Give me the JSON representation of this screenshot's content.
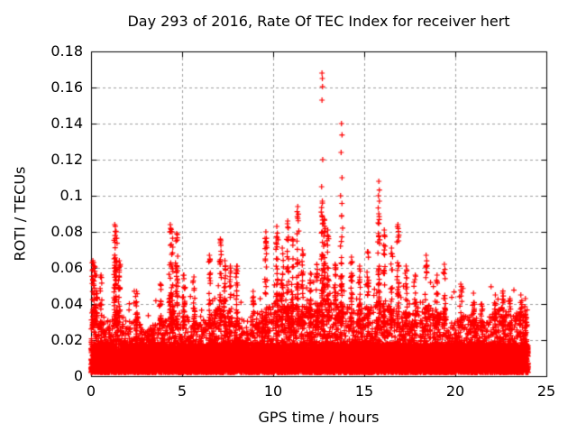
{
  "figure": {
    "background": "#ffffff",
    "text_color": "#000000",
    "border_color": "#000000"
  },
  "chart_data": {
    "type": "scatter",
    "title": "Day 293 of 2016, Rate Of TEC Index for receiver hert",
    "xlabel": "GPS time / hours",
    "ylabel": "ROTI / TECUs",
    "xlim": [
      0,
      25
    ],
    "ylim": [
      0,
      0.18
    ],
    "xticks": {
      "values": [
        0,
        5,
        10,
        15,
        20,
        25
      ],
      "labels": [
        "0",
        "5",
        "10",
        "15",
        "20",
        "25"
      ]
    },
    "yticks": {
      "values": [
        0,
        0.02,
        0.04,
        0.06,
        0.08,
        0.1,
        0.12,
        0.14,
        0.16,
        0.18
      ],
      "labels": [
        "0",
        "0.02",
        "0.04",
        "0.06",
        "0.08",
        "0.1",
        "0.12",
        "0.14",
        "0.16",
        "0.18"
      ]
    },
    "grid": {
      "visible": true,
      "line_style": "dashed",
      "color": "#a0a0a0"
    },
    "legend": null,
    "series": [
      {
        "name": "ROTI",
        "marker": "plus",
        "color": "#ff0000",
        "marker_size_px": 7,
        "time_range_hours": [
          0,
          24
        ],
        "dense_band": {
          "solid_top_typical_tecu": 0.02,
          "profile_t_hours": [
            0,
            0.5,
            1,
            1.5,
            2,
            2.5,
            3,
            3.5,
            4,
            4.5,
            5,
            5.5,
            6,
            6.5,
            7,
            7.5,
            8,
            8.5,
            9,
            9.5,
            10,
            10.5,
            11,
            11.5,
            12,
            12.5,
            13,
            13.5,
            14,
            14.5,
            15,
            15.5,
            16,
            16.5,
            17,
            17.5,
            18,
            18.5,
            19,
            19.5,
            20,
            20.5,
            21,
            21.5,
            22,
            22.5,
            23,
            23.5,
            24
          ],
          "profile_top_tecu": [
            0.034,
            0.03,
            0.032,
            0.038,
            0.03,
            0.034,
            0.026,
            0.03,
            0.032,
            0.038,
            0.034,
            0.032,
            0.03,
            0.034,
            0.038,
            0.034,
            0.032,
            0.033,
            0.034,
            0.038,
            0.04,
            0.046,
            0.042,
            0.04,
            0.038,
            0.042,
            0.043,
            0.042,
            0.04,
            0.036,
            0.038,
            0.04,
            0.043,
            0.04,
            0.036,
            0.035,
            0.036,
            0.04,
            0.035,
            0.035,
            0.031,
            0.034,
            0.035,
            0.03,
            0.034,
            0.038,
            0.034,
            0.034,
            0.038
          ]
        },
        "spike_clusters": [
          [
            0.1,
            0.064
          ],
          [
            0.18,
            0.061
          ],
          [
            0.3,
            0.056
          ],
          [
            0.55,
            0.056
          ],
          [
            1.3,
            0.084
          ],
          [
            1.38,
            0.08
          ],
          [
            1.55,
            0.064
          ],
          [
            2.5,
            0.047
          ],
          [
            3.8,
            0.051
          ],
          [
            4.35,
            0.084
          ],
          [
            4.45,
            0.08
          ],
          [
            4.7,
            0.079
          ],
          [
            5.1,
            0.056
          ],
          [
            5.65,
            0.055
          ],
          [
            6.5,
            0.067
          ],
          [
            7.1,
            0.076
          ],
          [
            7.35,
            0.064
          ],
          [
            7.65,
            0.061
          ],
          [
            8.0,
            0.061
          ],
          [
            8.9,
            0.047
          ],
          [
            9.6,
            0.08
          ],
          [
            10.2,
            0.083
          ],
          [
            10.5,
            0.071
          ],
          [
            10.8,
            0.086
          ],
          [
            11.05,
            0.076
          ],
          [
            11.35,
            0.094
          ],
          [
            11.6,
            0.07
          ],
          [
            12.05,
            0.057
          ],
          [
            12.4,
            0.062
          ],
          [
            12.68,
            0.168
          ],
          [
            12.8,
            0.087
          ],
          [
            13.0,
            0.081
          ],
          [
            13.4,
            0.062
          ],
          [
            13.75,
            0.14
          ],
          [
            14.3,
            0.066
          ],
          [
            14.75,
            0.061
          ],
          [
            15.2,
            0.069
          ],
          [
            15.8,
            0.108
          ],
          [
            16.1,
            0.081
          ],
          [
            16.5,
            0.071
          ],
          [
            16.85,
            0.084
          ],
          [
            17.3,
            0.061
          ],
          [
            17.8,
            0.056
          ],
          [
            18.4,
            0.067
          ],
          [
            19.0,
            0.056
          ],
          [
            19.4,
            0.062
          ],
          [
            20.3,
            0.051
          ],
          [
            21.0,
            0.046
          ],
          [
            21.45,
            0.04
          ],
          [
            22.2,
            0.045
          ],
          [
            22.6,
            0.046
          ],
          [
            23.0,
            0.043
          ],
          [
            23.6,
            0.045
          ],
          [
            23.85,
            0.043
          ]
        ],
        "explicit_points": [
          [
            12.68,
            0.168
          ],
          [
            12.7,
            0.165
          ],
          [
            12.68,
            0.153
          ],
          [
            12.72,
            0.12
          ],
          [
            12.66,
            0.105
          ],
          [
            12.7,
            0.097
          ],
          [
            13.75,
            0.14
          ],
          [
            13.73,
            0.124
          ],
          [
            13.78,
            0.11
          ],
          [
            13.7,
            0.1
          ],
          [
            13.76,
            0.089
          ],
          [
            15.8,
            0.108
          ],
          [
            15.78,
            0.1
          ],
          [
            15.83,
            0.097
          ],
          [
            15.8,
            0.09
          ],
          [
            15.76,
            0.085
          ]
        ],
        "max_point": {
          "t_hours": 12.68,
          "value_tecu": 0.168
        }
      }
    ]
  },
  "render_params": {
    "seed": 293,
    "epochs": 2400,
    "points_per_epoch": 7
  }
}
